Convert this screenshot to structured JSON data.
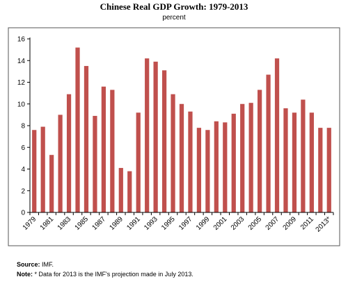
{
  "chart_data": {
    "type": "bar",
    "title": "Chinese Real GDP Growth: 1979-2013",
    "subtitle": "percent",
    "xlabel": "",
    "ylabel": "",
    "ylim": [
      0,
      16
    ],
    "yticks": [
      0,
      2,
      4,
      6,
      8,
      10,
      12,
      14,
      16
    ],
    "grid": false,
    "bar_color": "#c0504d",
    "categories": [
      "1979",
      "1980",
      "1981",
      "1982",
      "1983",
      "1984",
      "1985",
      "1986",
      "1987",
      "1988",
      "1989",
      "1990",
      "1991",
      "1992",
      "1993",
      "1994",
      "1995",
      "1996",
      "1997",
      "1998",
      "1999",
      "2000",
      "2001",
      "2002",
      "2003",
      "2004",
      "2005",
      "2006",
      "2007",
      "2008",
      "2009",
      "2010",
      "2011",
      "2012",
      "2013*"
    ],
    "tick_labels": [
      "1979",
      "1981",
      "1983",
      "1985",
      "1987",
      "1989",
      "1991",
      "1993",
      "1995",
      "1997",
      "1999",
      "2001",
      "2003",
      "2005",
      "2007",
      "2009",
      "2011",
      "2013*"
    ],
    "values": [
      7.6,
      7.9,
      5.3,
      9.0,
      10.9,
      15.2,
      13.5,
      8.9,
      11.6,
      11.3,
      4.1,
      3.8,
      9.2,
      14.2,
      13.9,
      13.1,
      10.9,
      10.0,
      9.3,
      7.8,
      7.6,
      8.4,
      8.3,
      9.1,
      10.0,
      10.1,
      11.3,
      12.7,
      14.2,
      9.6,
      9.2,
      10.4,
      9.2,
      7.8,
      7.8
    ]
  },
  "footnotes": {
    "source_label": "Source:",
    "source_text": " IMF.",
    "note_label": "Note:",
    "note_text": " * Data for 2013 is the IMF's projection made in July 2013."
  }
}
